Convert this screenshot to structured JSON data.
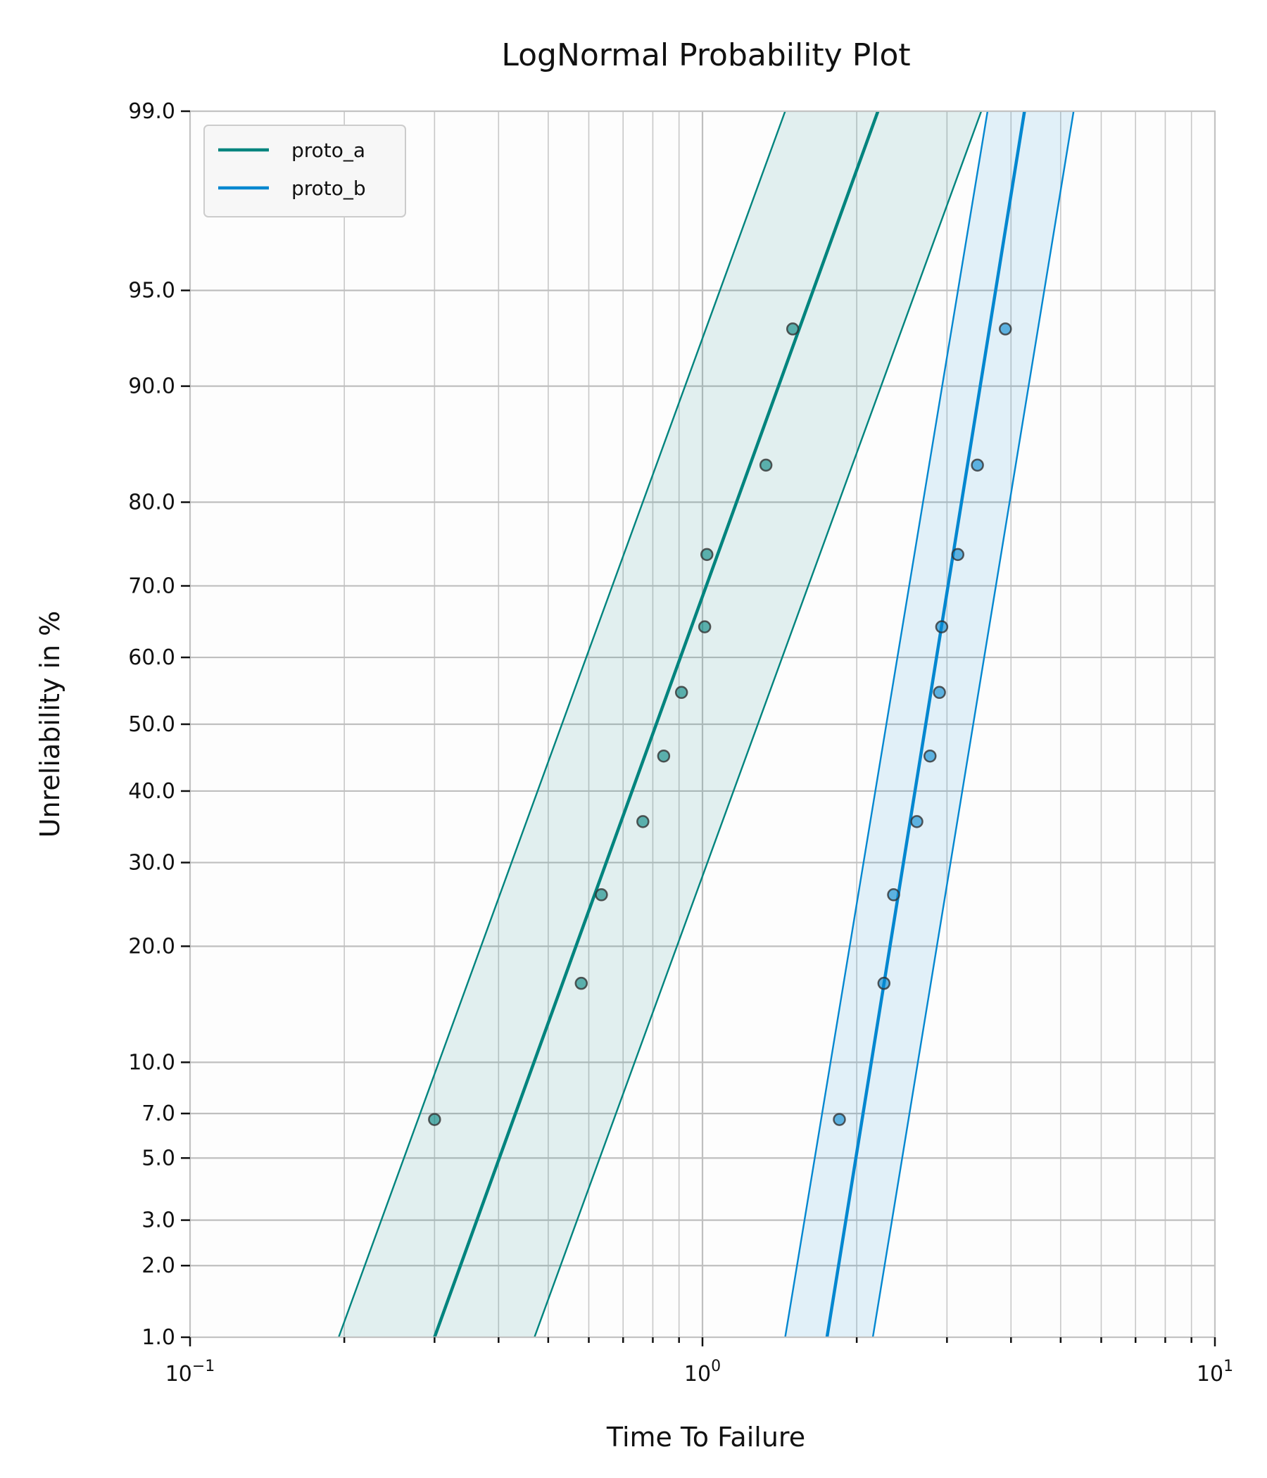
{
  "chart_data": {
    "type": "scatter",
    "title": "LogNormal Probability Plot",
    "xlabel": "Time To Failure",
    "ylabel": "Unreliability in %",
    "x_scale": "log",
    "y_scale": "lognormal-probability",
    "xlim": [
      0.1,
      10
    ],
    "ylim": [
      1.0,
      99.0
    ],
    "x_ticks": [
      {
        "value": 0.1,
        "base": "10",
        "exp": "−1"
      },
      {
        "value": 1,
        "base": "10",
        "exp": "0"
      },
      {
        "value": 10,
        "base": "10",
        "exp": "1"
      }
    ],
    "y_ticks": [
      "1.0",
      "2.0",
      "3.0",
      "5.0",
      "7.0",
      "10.0",
      "20.0",
      "30.0",
      "40.0",
      "50.0",
      "60.0",
      "70.0",
      "80.0",
      "90.0",
      "95.0",
      "99.0"
    ],
    "grid": true,
    "legend_position": "top-left",
    "series": [
      {
        "name": "proto_a",
        "color": "#00847e",
        "points": [
          {
            "x": 0.3,
            "y": 6.7
          },
          {
            "x": 0.58,
            "y": 16.3
          },
          {
            "x": 0.635,
            "y": 25.9
          },
          {
            "x": 0.765,
            "y": 35.6
          },
          {
            "x": 0.84,
            "y": 45.2
          },
          {
            "x": 0.91,
            "y": 54.8
          },
          {
            "x": 1.01,
            "y": 64.4
          },
          {
            "x": 1.02,
            "y": 74.0
          },
          {
            "x": 1.33,
            "y": 83.7
          },
          {
            "x": 1.5,
            "y": 93.3
          }
        ],
        "fit": {
          "x_at_1pct": 0.3,
          "x_at_99pct": 2.2
        },
        "ci_lower": {
          "x_at_1pct": 0.47,
          "x_at_99pct": 3.5
        },
        "ci_upper": {
          "x_at_1pct": 0.195,
          "x_at_99pct": 1.45
        }
      },
      {
        "name": "proto_b",
        "color": "#0387d0",
        "points": [
          {
            "x": 1.85,
            "y": 6.7
          },
          {
            "x": 2.26,
            "y": 16.3
          },
          {
            "x": 2.36,
            "y": 25.9
          },
          {
            "x": 2.62,
            "y": 35.6
          },
          {
            "x": 2.78,
            "y": 45.2
          },
          {
            "x": 2.9,
            "y": 54.8
          },
          {
            "x": 2.93,
            "y": 64.4
          },
          {
            "x": 3.15,
            "y": 74.0
          },
          {
            "x": 3.44,
            "y": 83.7
          },
          {
            "x": 3.9,
            "y": 93.3
          }
        ],
        "fit": {
          "x_at_1pct": 1.75,
          "x_at_99pct": 4.25
        },
        "ci_lower": {
          "x_at_1pct": 2.15,
          "x_at_99pct": 5.3
        },
        "ci_upper": {
          "x_at_1pct": 1.45,
          "x_at_99pct": 3.6
        }
      }
    ]
  }
}
